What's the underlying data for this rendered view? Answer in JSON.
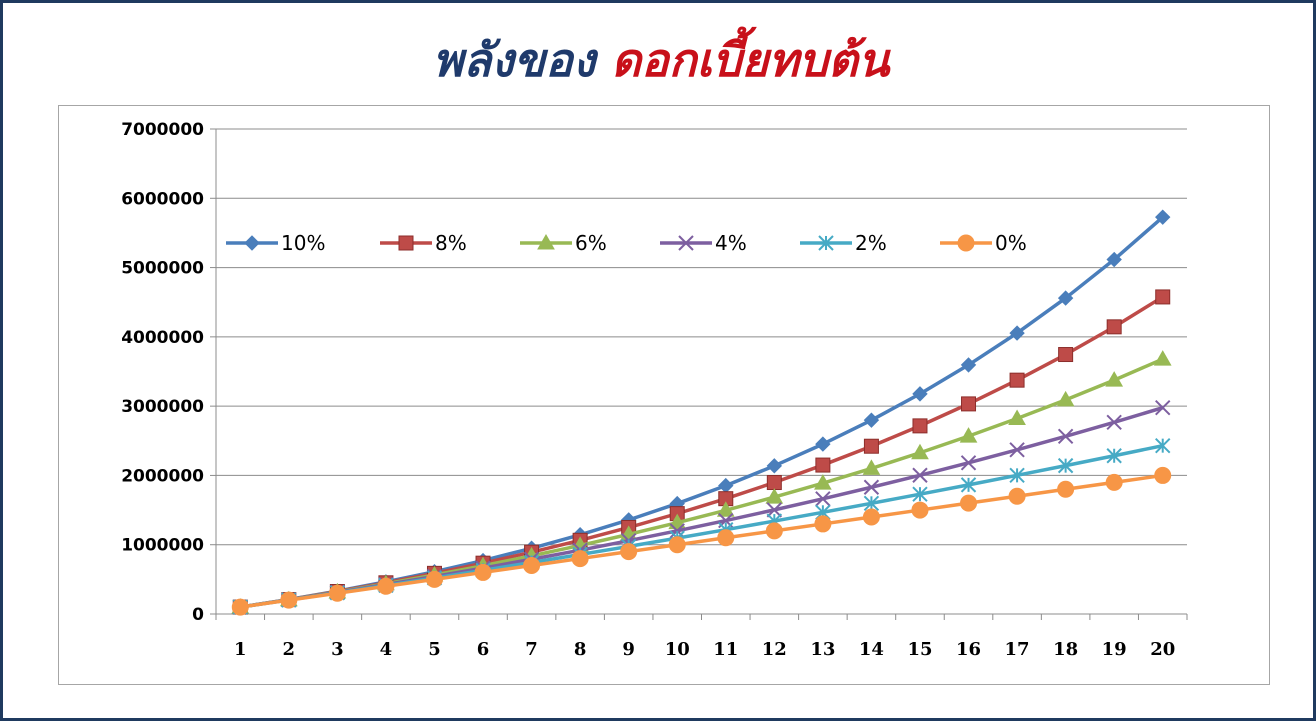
{
  "title": {
    "part1": "พลังของ",
    "part2": "ดอกเบี้ยทบต้น"
  },
  "chart_data": {
    "type": "line",
    "x": [
      1,
      2,
      3,
      4,
      5,
      6,
      7,
      8,
      9,
      10,
      11,
      12,
      13,
      14,
      15,
      16,
      17,
      18,
      19,
      20
    ],
    "ylim": [
      0,
      7000000
    ],
    "yticks": [
      "0",
      "1000000",
      "2000000",
      "3000000",
      "4000000",
      "5000000",
      "6000000",
      "7000000"
    ],
    "grid": "horizontal",
    "legend_position": "top-left",
    "series": [
      {
        "name": "10%",
        "color": "#4a7ebb",
        "marker": "diamond",
        "values": [
          100000,
          210000,
          331000,
          464100,
          610510,
          771561,
          948717,
          1143589,
          1357948,
          1593742,
          1853117,
          2138428,
          2452271,
          2797498,
          3177248,
          3594973,
          4054470,
          4559917,
          5115909,
          5727500
        ]
      },
      {
        "name": "8%",
        "color": "#be4b48",
        "marker": "square",
        "values": [
          100000,
          208000,
          324640,
          450611,
          586660,
          733593,
          892280,
          1063663,
          1248756,
          1448656,
          1664549,
          1897713,
          2149530,
          2421492,
          2715211,
          3032428,
          3375023,
          3745024,
          4144626,
          4576196
        ]
      },
      {
        "name": "6%",
        "color": "#98b954",
        "marker": "triangle",
        "values": [
          100000,
          206000,
          318360,
          437462,
          563709,
          697532,
          839384,
          989747,
          1149132,
          1318079,
          1497164,
          1686994,
          1888214,
          2101507,
          2327597,
          2567253,
          2821288,
          3090565,
          3375999,
          3678559
        ]
      },
      {
        "name": "4%",
        "color": "#7d5fa0",
        "marker": "x",
        "values": [
          100000,
          204000,
          312160,
          424646,
          541632,
          663298,
          789829,
          921423,
          1058280,
          1200611,
          1348635,
          1502581,
          1662684,
          1829191,
          2002359,
          2182453,
          2369751,
          2564541,
          2767123,
          2977808
        ]
      },
      {
        "name": "2%",
        "color": "#46aac5",
        "marker": "star",
        "values": [
          100000,
          202000,
          306040,
          412161,
          520404,
          630812,
          743428,
          858297,
          975463,
          1094972,
          1216872,
          1341209,
          1468033,
          1597394,
          1729342,
          1863929,
          2001207,
          2141231,
          2284056,
          2429737
        ]
      },
      {
        "name": "0%",
        "color": "#f79646",
        "marker": "circle",
        "values": [
          100000,
          200000,
          300000,
          400000,
          500000,
          600000,
          700000,
          800000,
          900000,
          1000000,
          1100000,
          1200000,
          1300000,
          1400000,
          1500000,
          1600000,
          1700000,
          1800000,
          1900000,
          2000000
        ]
      }
    ]
  }
}
